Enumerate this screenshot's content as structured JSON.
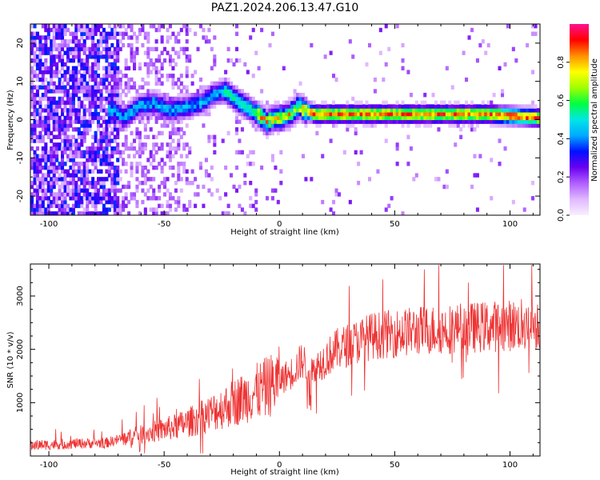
{
  "figure": {
    "title": "PAZ1.2024.206.13.47.G10"
  },
  "chart_data": [
    {
      "type": "heatmap",
      "xlabel": "Height of straight line (km)",
      "ylabel": "Frequency (Hz)",
      "xlim": [
        -108,
        113
      ],
      "ylim": [
        -25,
        25
      ],
      "x_ticks": [
        -100,
        -50,
        0,
        50,
        100
      ],
      "y_ticks": [
        -20,
        -10,
        0,
        10,
        20
      ],
      "colorbar": {
        "label": "Normalized spectral amplitude",
        "range": [
          0,
          1
        ],
        "ticks": [
          0.0,
          0.2,
          0.4,
          0.6,
          0.8
        ],
        "colormap": [
          "#f8f0ff",
          "#e0b8ff",
          "#b060ff",
          "#6a00f0",
          "#0010ff",
          "#00aaff",
          "#00e6e6",
          "#00ff40",
          "#a0ff00",
          "#ffff00",
          "#ff9000",
          "#ff0000",
          "#ff1090"
        ]
      },
      "ridge_frequency": {
        "x": [
          -72,
          -68,
          -62,
          -55,
          -48,
          -40,
          -34,
          -30,
          -24,
          -20,
          -15,
          -10,
          -6,
          -3,
          0,
          4,
          8,
          10,
          15,
          30,
          60,
          90,
          113
        ],
        "y": [
          2,
          0,
          3,
          4,
          2,
          3,
          4,
          6,
          7,
          5,
          3,
          1,
          -1,
          0,
          0,
          1,
          3,
          2,
          1,
          1,
          1,
          1,
          0
        ]
      }
    },
    {
      "type": "line",
      "xlabel": "Height of straight line (km)",
      "ylabel": "SNR (10 * v/v)",
      "xlim": [
        -108,
        113
      ],
      "ylim": [
        0,
        3600
      ],
      "x_ticks": [
        -100,
        -50,
        0,
        50,
        100
      ],
      "y_ticks": [
        1000,
        2000,
        3000
      ],
      "color": "#ee3333",
      "envelope": {
        "x": [
          -108,
          -90,
          -75,
          -65,
          -55,
          -45,
          -35,
          -25,
          -15,
          -5,
          5,
          10,
          13,
          15,
          25,
          40,
          60,
          80,
          100,
          113
        ],
        "y": [
          200,
          230,
          250,
          350,
          450,
          550,
          700,
          900,
          1100,
          1300,
          1550,
          1800,
          1600,
          1650,
          2000,
          2250,
          2350,
          2400,
          2450,
          2480
        ]
      }
    }
  ]
}
